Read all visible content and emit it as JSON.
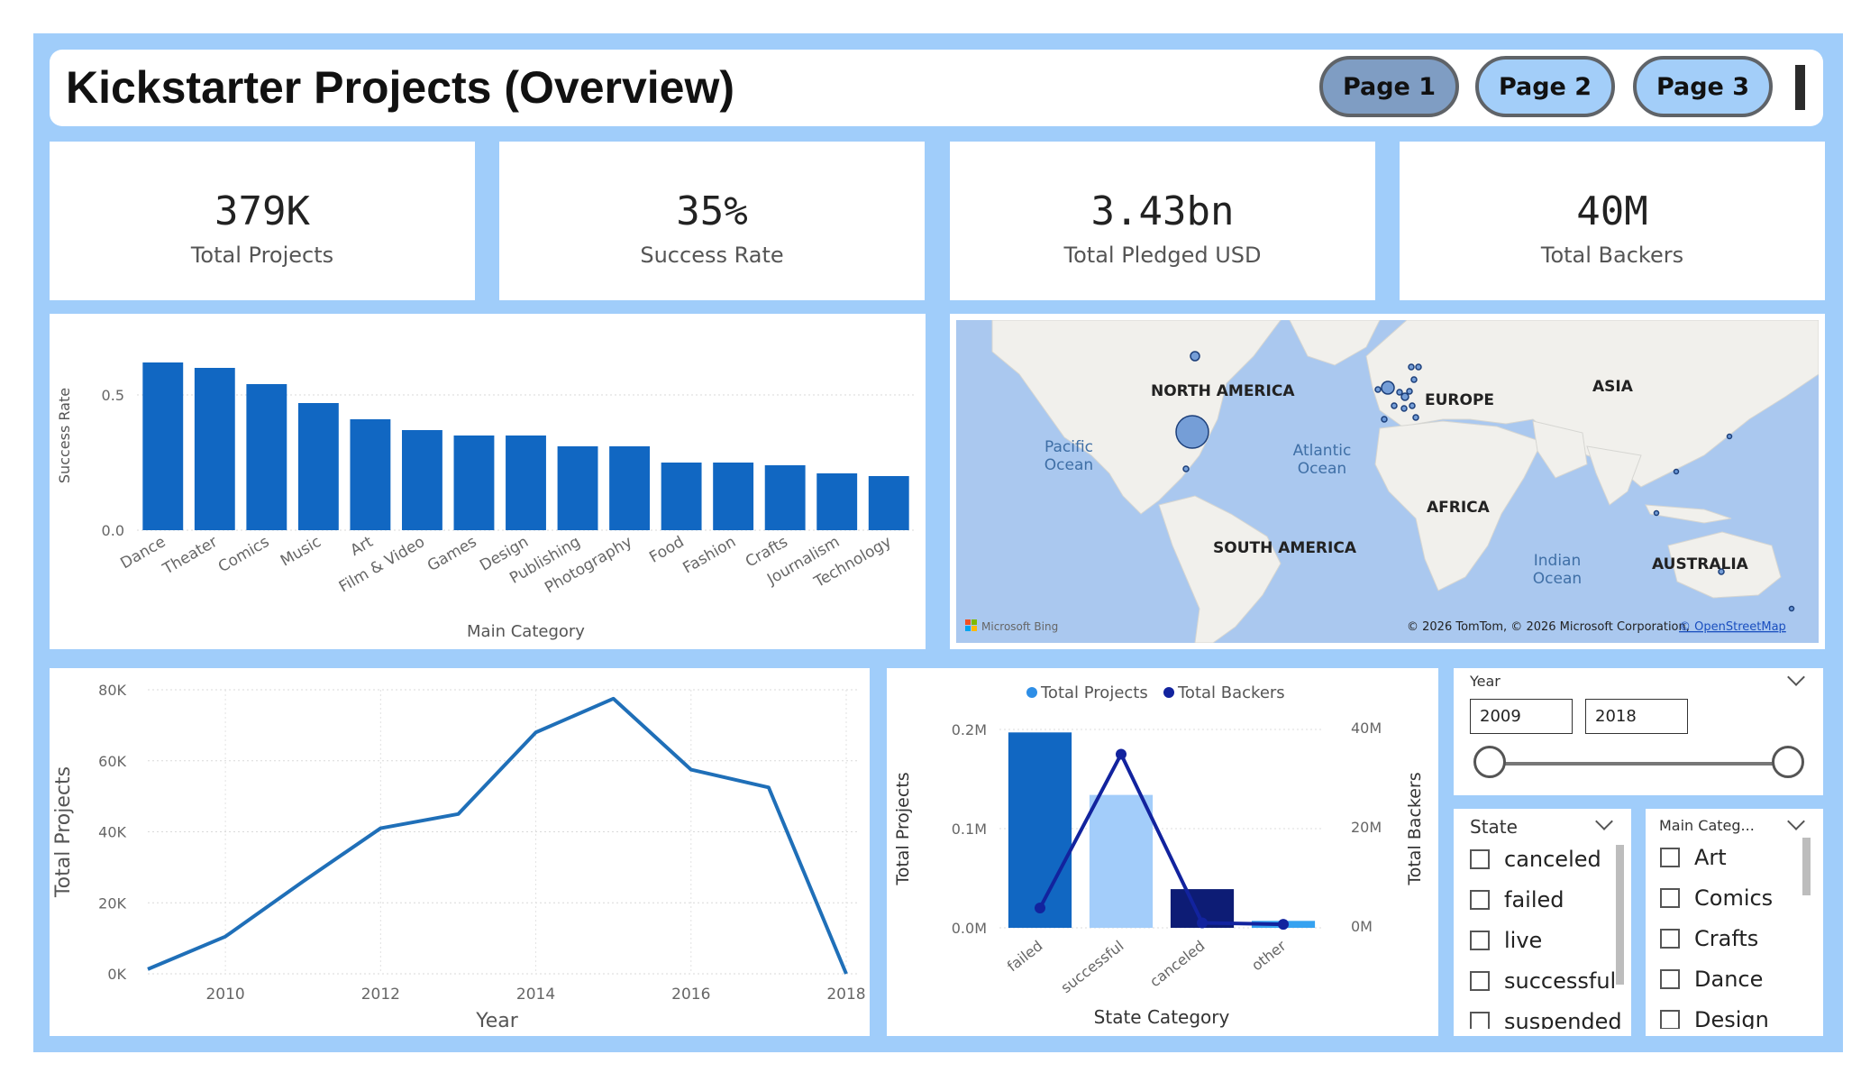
{
  "header": {
    "title": "Kickstarter Projects (Overview)",
    "pages": [
      "Page 1",
      "Page 2",
      "Page 3"
    ],
    "active_page": "Page 1"
  },
  "kpis": [
    {
      "value": "379K",
      "label": "Total Projects"
    },
    {
      "value": "35%",
      "label": "Success Rate"
    },
    {
      "value": "3.43bn",
      "label": "Total Pledged USD"
    },
    {
      "value": "40M",
      "label": "Total Backers"
    }
  ],
  "bar_chart": {
    "type": "bar",
    "ylabel": "Success Rate",
    "xlabel": "Main Category",
    "ytick_labels": [
      "0.5",
      "0.0"
    ],
    "ylim": [
      0,
      0.7
    ],
    "categories": [
      "Dance",
      "Theater",
      "Comics",
      "Music",
      "Art",
      "Film & Video",
      "Games",
      "Design",
      "Publishing",
      "Photography",
      "Food",
      "Fashion",
      "Crafts",
      "Journalism",
      "Technology"
    ],
    "values": [
      0.62,
      0.6,
      0.54,
      0.47,
      0.41,
      0.37,
      0.35,
      0.35,
      0.31,
      0.31,
      0.25,
      0.25,
      0.24,
      0.21,
      0.2
    ],
    "color": "#1167c2"
  },
  "map": {
    "labels": [
      {
        "text": "NORTH AMERICA",
        "kind": "continent"
      },
      {
        "text": "EUROPE",
        "kind": "continent"
      },
      {
        "text": "ASIA",
        "kind": "continent"
      },
      {
        "text": "AFRICA",
        "kind": "continent"
      },
      {
        "text": "SOUTH AMERICA",
        "kind": "continent"
      },
      {
        "text": "AUSTRALIA",
        "kind": "continent"
      },
      {
        "text": "Pacific",
        "kind": "ocean"
      },
      {
        "text": "Ocean",
        "kind": "ocean"
      },
      {
        "text": "Atlantic",
        "kind": "ocean"
      },
      {
        "text": "Ocean",
        "kind": "ocean"
      },
      {
        "text": "Indian",
        "kind": "ocean"
      },
      {
        "text": "Ocean",
        "kind": "ocean"
      }
    ],
    "attribution": "© 2026 TomTom, © 2026 Microsoft Corporation,",
    "attribution_link": "© OpenStreetMap",
    "brand": "Microsoft Bing",
    "water_color": "#aac8ef",
    "land_color": "#f1f0ec",
    "bubble_color": "#5f8fd3"
  },
  "line_chart": {
    "type": "line",
    "ylabel": "Total Projects",
    "xlabel": "Year",
    "x": [
      2009,
      2010,
      2011,
      2012,
      2013,
      2014,
      2015,
      2016,
      2017,
      2018
    ],
    "y": [
      1300,
      10500,
      26000,
      41000,
      45000,
      68000,
      77500,
      57500,
      52500,
      0
    ],
    "ylim": [
      0,
      80000
    ],
    "ytick_labels": [
      "80K",
      "60K",
      "40K",
      "20K",
      "0K"
    ],
    "xtick_labels": [
      "2010",
      "2012",
      "2014",
      "2016",
      "2018"
    ],
    "color": "#1f6fb8"
  },
  "combo_chart": {
    "type": "bar",
    "xlabel": "State Category",
    "ylabel": "Total Projects",
    "y2label": "Total Backers",
    "legend": [
      "Total Projects",
      "Total Backers"
    ],
    "legend_colors": [
      "#2e8ee6",
      "#12239e"
    ],
    "categories": [
      "failed",
      "successful",
      "canceled",
      "other"
    ],
    "projects": [
      197000,
      134000,
      39000,
      7000
    ],
    "backers": [
      4000000,
      35000000,
      1000000,
      700000
    ],
    "bar_colors": [
      "#1167c2",
      "#a3cdfa",
      "#0d1c75",
      "#36a2f0"
    ],
    "line_color": "#12239e",
    "ytick_labels": [
      "0.2M",
      "0.1M",
      "0.0M"
    ],
    "y2tick_labels": [
      "40M",
      "20M",
      "0M"
    ],
    "ylim": [
      0,
      200000
    ],
    "y2lim": [
      0,
      40000000
    ]
  },
  "year_slicer": {
    "title": "Year",
    "from": "2009",
    "to": "2018"
  },
  "state_slicer": {
    "title": "State",
    "items": [
      "canceled",
      "failed",
      "live",
      "successful",
      "suspended"
    ]
  },
  "category_slicer": {
    "title": "Main Categ...",
    "items": [
      "Art",
      "Comics",
      "Crafts",
      "Dance",
      "Design"
    ]
  }
}
